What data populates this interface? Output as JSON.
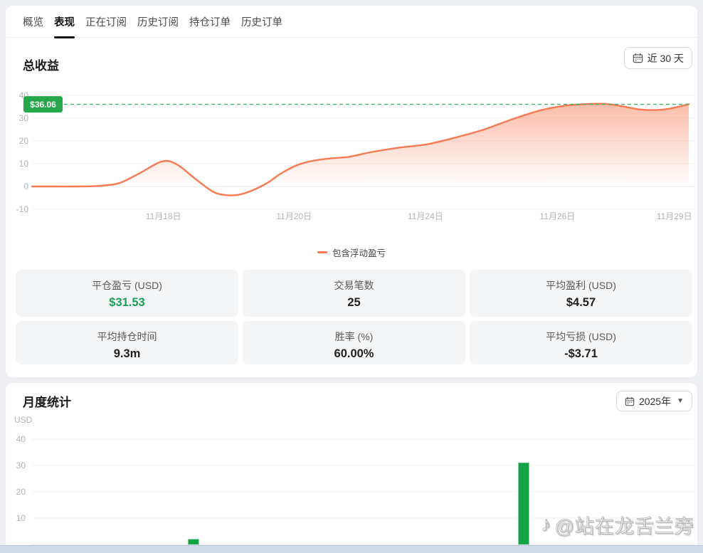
{
  "tabs": [
    {
      "label": "概览",
      "active": false
    },
    {
      "label": "表现",
      "active": true
    },
    {
      "label": "正在订阅",
      "active": false
    },
    {
      "label": "历史订阅",
      "active": false
    },
    {
      "label": "持仓订单",
      "active": false
    },
    {
      "label": "历史订单",
      "active": false
    }
  ],
  "performance": {
    "title": "总收益",
    "range_button_label": "近 30 天",
    "legend": "包含浮动盈亏",
    "max_badge": "$36.06",
    "stats": [
      {
        "label": "平仓盈亏 (USD)",
        "value": "$31.53",
        "green": true
      },
      {
        "label": "交易笔数",
        "value": "25",
        "green": false
      },
      {
        "label": "平均盈利 (USD)",
        "value": "$4.57",
        "green": false
      },
      {
        "label": "平均持仓时间",
        "value": "9.3m",
        "green": false
      },
      {
        "label": "胜率 (%)",
        "value": "60.00%",
        "green": false
      },
      {
        "label": "平均亏损 (USD)",
        "value": "-$3.71",
        "green": false
      }
    ]
  },
  "monthly": {
    "title": "月度统计",
    "year_button_label": "2025年",
    "axis_title": "USD"
  },
  "watermark": {
    "text": "@站在龙舌兰旁"
  },
  "colors": {
    "line_orange": "#f87a52",
    "badge_green": "#27a74c",
    "dashed_green": "#3db463",
    "bar_green": "#12a347",
    "value_green": "#18a058",
    "grid": "#f0f0f0",
    "axis_text": "#b3b3b3"
  },
  "chart_data": [
    {
      "type": "area",
      "title": "总收益",
      "legend": [
        "包含浮动盈亏"
      ],
      "line_color": "#f87a52",
      "grid": true,
      "legend_position": "bottom-center",
      "y_ticks": [
        40,
        30,
        20,
        10,
        0,
        -10
      ],
      "ylim": [
        -13,
        44
      ],
      "x_tick_labels": [
        "11月18日",
        "11月20日",
        "11月24日",
        "11月26日",
        "11月29日"
      ],
      "x_tick_pos": [
        0.2,
        0.399,
        0.599,
        0.8,
        0.978
      ],
      "max_marker": {
        "label": "$36.06",
        "value": 36.06
      },
      "points": [
        [
          0.0,
          0
        ],
        [
          0.03,
          0
        ],
        [
          0.068,
          0
        ],
        [
          0.1,
          0.2
        ],
        [
          0.133,
          1.5
        ],
        [
          0.165,
          6
        ],
        [
          0.198,
          11
        ],
        [
          0.22,
          9.8
        ],
        [
          0.248,
          3.5
        ],
        [
          0.275,
          -2.2
        ],
        [
          0.295,
          -3.8
        ],
        [
          0.315,
          -3.6
        ],
        [
          0.335,
          -1.8
        ],
        [
          0.358,
          1.5
        ],
        [
          0.378,
          5.5
        ],
        [
          0.399,
          8.8
        ],
        [
          0.42,
          10.8
        ],
        [
          0.45,
          12.2
        ],
        [
          0.482,
          13
        ],
        [
          0.515,
          15
        ],
        [
          0.558,
          17
        ],
        [
          0.601,
          18.5
        ],
        [
          0.645,
          21.5
        ],
        [
          0.688,
          25
        ],
        [
          0.731,
          29.5
        ],
        [
          0.775,
          33.5
        ],
        [
          0.812,
          35.5
        ],
        [
          0.845,
          36.2
        ],
        [
          0.872,
          36.3
        ],
        [
          0.899,
          35.2
        ],
        [
          0.926,
          33.8
        ],
        [
          0.953,
          33.6
        ],
        [
          0.975,
          34.4
        ],
        [
          1.0,
          36.1
        ]
      ]
    },
    {
      "type": "bar",
      "title": "月度统计",
      "ylabel": "USD",
      "grid": true,
      "y_ticks": [
        10,
        20,
        30,
        40
      ],
      "ylim": [
        0,
        45
      ],
      "bar_color": "#12a347",
      "bars": [
        {
          "pos": 0.244,
          "value": 2
        },
        {
          "pos": 0.743,
          "value": 31
        }
      ]
    }
  ]
}
